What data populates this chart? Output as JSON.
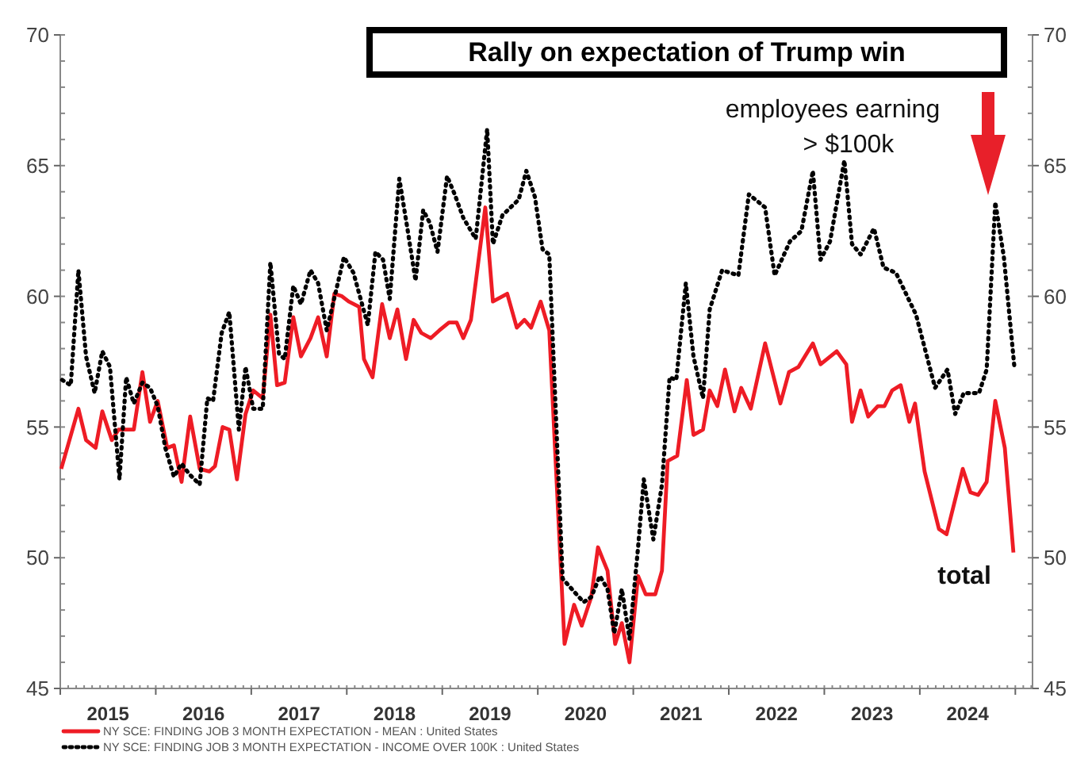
{
  "chart_data": {
    "type": "line",
    "title": "Rally on expectation of Trump win",
    "annotations": [
      "employees earning\n> $100k",
      "total"
    ],
    "xlim": [
      2015,
      2025.18
    ],
    "xticks": [
      {
        "value": 2015,
        "label": null
      },
      {
        "value": 2015.5,
        "label": "2015"
      },
      {
        "value": 2016,
        "label": null
      },
      {
        "value": 2016.5,
        "label": "2016"
      },
      {
        "value": 2017,
        "label": null
      },
      {
        "value": 2017.5,
        "label": "2017"
      },
      {
        "value": 2018,
        "label": null
      },
      {
        "value": 2018.5,
        "label": "2018"
      },
      {
        "value": 2019,
        "label": null
      },
      {
        "value": 2019.5,
        "label": "2019"
      },
      {
        "value": 2020,
        "label": null
      },
      {
        "value": 2020.5,
        "label": "2020"
      },
      {
        "value": 2021,
        "label": null
      },
      {
        "value": 2021.5,
        "label": "2021"
      },
      {
        "value": 2022,
        "label": null
      },
      {
        "value": 2022.5,
        "label": "2022"
      },
      {
        "value": 2023,
        "label": null
      },
      {
        "value": 2023.5,
        "label": "2023"
      },
      {
        "value": 2024,
        "label": null
      },
      {
        "value": 2024.5,
        "label": "2024"
      },
      {
        "value": 2025,
        "label": null
      }
    ],
    "ylim": [
      45,
      70
    ],
    "yticks": [
      45,
      50,
      55,
      60,
      65,
      70
    ],
    "y2lim": [
      45,
      70
    ],
    "y2ticks": [
      45,
      50,
      55,
      60,
      65,
      70
    ],
    "legend": "bottom",
    "grid": false,
    "series": [
      {
        "name": "NY SCE: FINDING JOB 3 MONTH EXPECTATION - MEAN : United States",
        "color": "#ee1c25",
        "line_style": "solid",
        "marker": "none",
        "x": [
          2015.01,
          2015.19,
          2015.27,
          2015.37,
          2015.44,
          2015.54,
          2015.61,
          2015.77,
          2015.86,
          2015.94,
          2016.02,
          2016.12,
          2016.19,
          2016.27,
          2016.36,
          2016.46,
          2016.56,
          2016.62,
          2016.7,
          2016.77,
          2016.85,
          2016.94,
          2017.02,
          2017.12,
          2017.2,
          2017.27,
          2017.35,
          2017.44,
          2017.52,
          2017.62,
          2017.7,
          2017.79,
          2017.87,
          2017.95,
          2018.02,
          2018.13,
          2018.18,
          2018.27,
          2018.37,
          2018.45,
          2018.53,
          2018.62,
          2018.7,
          2018.78,
          2018.88,
          2018.97,
          2019.07,
          2019.15,
          2019.22,
          2019.3,
          2019.45,
          2019.53,
          2019.68,
          2019.78,
          2019.86,
          2019.93,
          2020.03,
          2020.12,
          2020.28,
          2020.38,
          2020.46,
          2020.56,
          2020.63,
          2020.73,
          2020.81,
          2020.88,
          2020.96,
          2021.05,
          2021.13,
          2021.23,
          2021.3,
          2021.36,
          2021.46,
          2021.56,
          2021.63,
          2021.73,
          2021.8,
          2021.88,
          2021.96,
          2022.06,
          2022.13,
          2022.23,
          2022.38,
          2022.54,
          2022.63,
          2022.73,
          2022.88,
          2022.96,
          2023.13,
          2023.23,
          2023.29,
          2023.38,
          2023.46,
          2023.56,
          2023.63,
          2023.71,
          2023.8,
          2023.89,
          2023.95,
          2024.05,
          2024.2,
          2024.28,
          2024.45,
          2024.53,
          2024.61,
          2024.7,
          2024.79,
          2024.89,
          2024.98
        ],
        "values": [
          53.4,
          55.7,
          54.5,
          54.2,
          55.6,
          54.5,
          54.9,
          54.9,
          57.1,
          55.2,
          56.0,
          54.2,
          54.3,
          52.9,
          55.4,
          53.4,
          53.3,
          53.5,
          55.0,
          54.9,
          53.0,
          55.5,
          56.4,
          56.1,
          59.3,
          56.6,
          56.7,
          59.2,
          57.7,
          58.4,
          59.2,
          57.7,
          60.1,
          60.0,
          59.8,
          59.6,
          57.6,
          56.9,
          59.7,
          58.4,
          59.5,
          57.6,
          59.1,
          58.6,
          58.4,
          58.7,
          59.0,
          59.0,
          58.4,
          59.1,
          63.4,
          59.8,
          60.1,
          58.8,
          59.1,
          58.8,
          59.8,
          58.7,
          46.7,
          48.2,
          47.4,
          48.5,
          50.4,
          49.5,
          46.7,
          47.5,
          46.0,
          49.3,
          48.6,
          48.6,
          49.5,
          53.7,
          53.9,
          56.8,
          54.7,
          54.9,
          56.4,
          55.8,
          57.2,
          55.6,
          56.5,
          55.7,
          58.2,
          55.9,
          57.1,
          57.3,
          58.2,
          57.4,
          57.9,
          57.4,
          55.2,
          56.4,
          55.4,
          55.8,
          55.8,
          56.4,
          56.6,
          55.2,
          55.9,
          53.3,
          51.1,
          50.9,
          53.4,
          52.5,
          52.4,
          52.9,
          56.0,
          54.2,
          50.2
        ]
      },
      {
        "name": "NY SCE: FINDING JOB 3 MONTH EXPECTATION - INCOME OVER 100K : United States",
        "color": "#000000",
        "line_style": "dotted",
        "marker": "none",
        "x": [
          2015.02,
          2015.11,
          2015.19,
          2015.27,
          2015.36,
          2015.44,
          2015.52,
          2015.62,
          2015.69,
          2015.77,
          2015.86,
          2015.94,
          2016.02,
          2016.1,
          2016.19,
          2016.27,
          2016.35,
          2016.46,
          2016.54,
          2016.6,
          2016.69,
          2016.77,
          2016.87,
          2016.94,
          2017.02,
          2017.12,
          2017.2,
          2017.29,
          2017.35,
          2017.44,
          2017.52,
          2017.62,
          2017.7,
          2017.79,
          2017.97,
          2018.07,
          2018.22,
          2018.3,
          2018.38,
          2018.45,
          2018.55,
          2018.63,
          2018.72,
          2018.8,
          2018.87,
          2018.95,
          2019.05,
          2019.13,
          2019.22,
          2019.35,
          2019.47,
          2019.53,
          2019.63,
          2019.8,
          2019.88,
          2019.97,
          2020.05,
          2020.12,
          2020.26,
          2020.38,
          2020.48,
          2020.56,
          2020.65,
          2020.73,
          2020.8,
          2020.88,
          2020.96,
          2021.05,
          2021.11,
          2021.21,
          2021.3,
          2021.38,
          2021.45,
          2021.55,
          2021.63,
          2021.73,
          2021.8,
          2021.93,
          2022.1,
          2022.21,
          2022.38,
          2022.48,
          2022.64,
          2022.76,
          2022.88,
          2022.96,
          2023.06,
          2023.21,
          2023.29,
          2023.38,
          2023.52,
          2023.62,
          2023.75,
          2023.96,
          2024.16,
          2024.29,
          2024.37,
          2024.46,
          2024.62,
          2024.7,
          2024.79,
          2024.88,
          2024.99
        ],
        "values": [
          56.8,
          56.6,
          61.0,
          57.7,
          56.3,
          57.9,
          57.3,
          53.0,
          56.9,
          55.9,
          56.7,
          56.5,
          55.8,
          54.2,
          53.1,
          53.6,
          53.2,
          52.8,
          56.1,
          56.0,
          58.6,
          59.4,
          54.9,
          57.3,
          55.7,
          55.7,
          61.3,
          57.8,
          57.6,
          60.4,
          59.7,
          61.0,
          60.5,
          58.7,
          61.5,
          60.9,
          58.9,
          61.7,
          61.4,
          59.9,
          64.5,
          62.7,
          60.6,
          63.3,
          62.8,
          61.7,
          64.6,
          63.9,
          63.0,
          62.2,
          66.4,
          62.0,
          63.1,
          63.7,
          64.8,
          63.8,
          61.8,
          61.6,
          49.2,
          48.7,
          48.3,
          48.5,
          49.3,
          48.8,
          47.1,
          48.8,
          46.9,
          50.4,
          53.0,
          50.7,
          52.8,
          56.9,
          56.8,
          60.5,
          57.7,
          56.1,
          59.5,
          61.0,
          60.8,
          63.9,
          63.4,
          60.8,
          62.1,
          62.5,
          64.8,
          61.4,
          62.1,
          65.2,
          62.0,
          61.6,
          62.6,
          61.1,
          60.9,
          59.3,
          56.5,
          57.2,
          55.5,
          56.3,
          56.3,
          57.2,
          63.6,
          61.5,
          57.3
        ]
      }
    ]
  }
}
